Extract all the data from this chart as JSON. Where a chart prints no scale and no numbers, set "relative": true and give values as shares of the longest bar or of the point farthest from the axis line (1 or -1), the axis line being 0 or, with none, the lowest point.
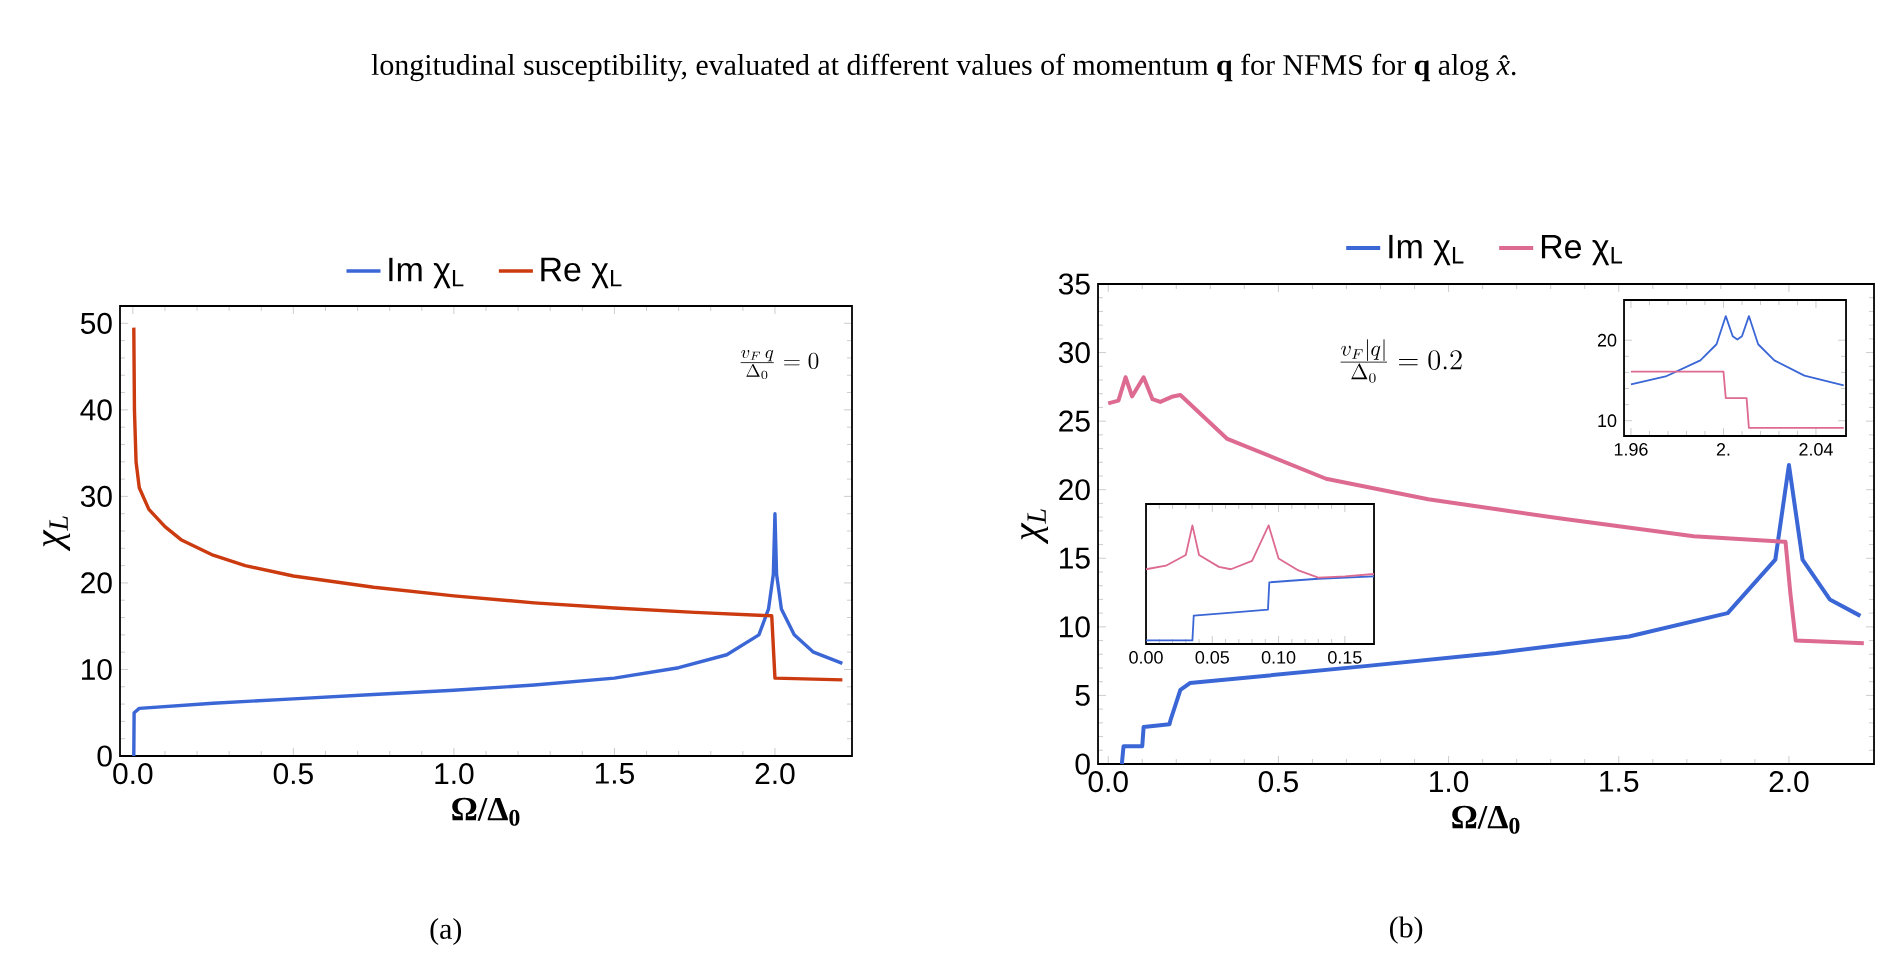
{
  "chart_data": [
    {
      "type": "line",
      "xlabel": "Ω/Δ$_{0}$",
      "ylabel": "χ$_{L}$",
      "legend": "top",
      "xlim": [
        -0.04,
        2.24
      ],
      "ylim": [
        0,
        52
      ],
      "xticks": [
        {
          "value": 0,
          "label": "0.0"
        },
        {
          "value": 0.5,
          "label": "0.5"
        },
        {
          "value": 1,
          "label": "1.0"
        },
        {
          "value": 1.5,
          "label": "1.5"
        },
        {
          "value": 2,
          "label": "2.0"
        }
      ],
      "yticks": [
        0,
        10,
        20,
        30,
        40,
        50
      ],
      "annotations": [
        "\\frac{v_F\\, q}{\\Delta_0}=0",
        "(a)",
        "longitudinal susceptibility, evaluated at different values of momentum **q** for NFMS for **q** alog *x̂*."
      ],
      "series": [
        {
          "name": "Im χ$_{L}$",
          "color": "#3a66d6",
          "x": [
            0.003,
            0.004,
            0.02,
            0.25,
            0.5,
            0.75,
            1.0,
            1.25,
            1.5,
            1.7,
            1.85,
            1.95,
            1.98,
            1.995,
            2.0,
            2.005,
            2.02,
            2.06,
            2.12,
            2.21
          ],
          "values": [
            0,
            5,
            5.5,
            6.1,
            6.6,
            7.1,
            7.6,
            8.2,
            9.0,
            10.2,
            11.7,
            14,
            17,
            21,
            28,
            21,
            17,
            14,
            12,
            10.7
          ]
        },
        {
          "name": "Re χ$_{L}$",
          "color": "#cc3a10",
          "x": [
            0.003,
            0.005,
            0.01,
            0.02,
            0.05,
            0.1,
            0.15,
            0.25,
            0.35,
            0.5,
            0.75,
            1.0,
            1.25,
            1.5,
            1.75,
            1.99,
            2.0,
            2.21
          ],
          "values": [
            49.5,
            40,
            34,
            31,
            28.5,
            26.5,
            25,
            23.2,
            22,
            20.8,
            19.5,
            18.5,
            17.7,
            17.1,
            16.6,
            16.2,
            9.0,
            8.8
          ]
        }
      ]
    },
    {
      "type": "line",
      "xlabel": "Ω/Δ$_{0}$",
      "ylabel": "χ$_{L}$",
      "legend": "top",
      "xlim": [
        -0.03,
        2.25
      ],
      "ylim": [
        0,
        35
      ],
      "xticks": [
        {
          "value": 0,
          "label": "0.0"
        },
        {
          "value": 0.5,
          "label": "0.5"
        },
        {
          "value": 1,
          "label": "1.0"
        },
        {
          "value": 1.5,
          "label": "1.5"
        },
        {
          "value": 2,
          "label": "2.0"
        }
      ],
      "yticks": [
        0,
        5,
        10,
        15,
        20,
        25,
        30,
        35
      ],
      "annotations": [
        "\\frac{v_F |q|}{\\Delta_0}=0.2",
        "(b)"
      ],
      "series": [
        {
          "name": "Im χ$_{L}$",
          "color": "#3a66d6",
          "x": [
            0.04,
            0.045,
            0.1,
            0.104,
            0.18,
            0.183,
            0.2,
            0.212,
            0.24,
            0.74,
            1.14,
            1.53,
            1.82,
            1.96,
            2.0,
            2.04,
            2.12,
            2.21
          ],
          "values": [
            0,
            1.3,
            1.3,
            2.7,
            2.9,
            3.2,
            4.5,
            5.4,
            5.9,
            7.1,
            8.1,
            9.3,
            11.0,
            14.9,
            21.8,
            14.9,
            12,
            10.8
          ]
        },
        {
          "name": "Re χ$_{L}$",
          "color": "#dd6a90",
          "x": [
            0,
            0.03,
            0.051,
            0.07,
            0.104,
            0.13,
            0.153,
            0.19,
            0.212,
            0.35,
            0.64,
            0.94,
            1.33,
            1.72,
            1.99,
            2.004,
            2.02,
            2.22
          ],
          "values": [
            26.3,
            26.5,
            28.2,
            26.8,
            28.2,
            26.6,
            26.4,
            26.8,
            26.9,
            23.7,
            20.8,
            19.3,
            17.9,
            16.6,
            16.2,
            12.5,
            9.0,
            8.8
          ]
        }
      ]
    },
    {
      "type": "line",
      "relative": true,
      "tick_labels": "x",
      "xlim": [
        0,
        0.172
      ],
      "xticks": [
        {
          "value": 0,
          "label": "0.00"
        },
        {
          "value": 0.05,
          "label": "0.05"
        },
        {
          "value": 0.1,
          "label": "0.10"
        },
        {
          "value": 0.15,
          "label": "0.15"
        }
      ],
      "series": [
        {
          "color": "#3a66d6",
          "x": [
            0,
            0.035,
            0.036,
            0.06,
            0.092,
            0.093,
            0.13,
            0.172
          ],
          "values": [
            0.03,
            0.03,
            0.24,
            0.26,
            0.29,
            0.52,
            0.55,
            0.57
          ]
        },
        {
          "color": "#dd6a90",
          "x": [
            0,
            0.015,
            0.03,
            0.035,
            0.04,
            0.055,
            0.064,
            0.08,
            0.0925,
            0.1,
            0.115,
            0.13,
            0.15,
            0.172
          ],
          "values": [
            0.63,
            0.66,
            0.75,
            1.0,
            0.75,
            0.65,
            0.63,
            0.7,
            1.0,
            0.72,
            0.62,
            0.56,
            0.57,
            0.59
          ]
        }
      ]
    },
    {
      "type": "line",
      "xlim": [
        1.957,
        2.053
      ],
      "ylim": [
        8.1,
        25
      ],
      "xticks": [
        1.96,
        {
          "value": 2,
          "label": "2."
        },
        2.04
      ],
      "yticks": [
        10,
        20
      ],
      "series": [
        {
          "color": "#3a66d6",
          "x": [
            1.96,
            1.975,
            1.99,
            1.997,
            2.001,
            2.004,
            2.006,
            2.008,
            2.011,
            2.015,
            2.022,
            2.035,
            2.052
          ],
          "values": [
            14.5,
            15.5,
            17.5,
            19.5,
            23.0,
            20.5,
            20.1,
            20.5,
            23.0,
            19.5,
            17.5,
            15.6,
            14.4
          ]
        },
        {
          "color": "#dd6a90",
          "x": [
            1.96,
            2.0,
            2.001,
            2.01,
            2.011,
            2.052
          ],
          "values": [
            16.1,
            16.1,
            12.8,
            12.8,
            9.1,
            9.1
          ]
        }
      ]
    }
  ]
}
